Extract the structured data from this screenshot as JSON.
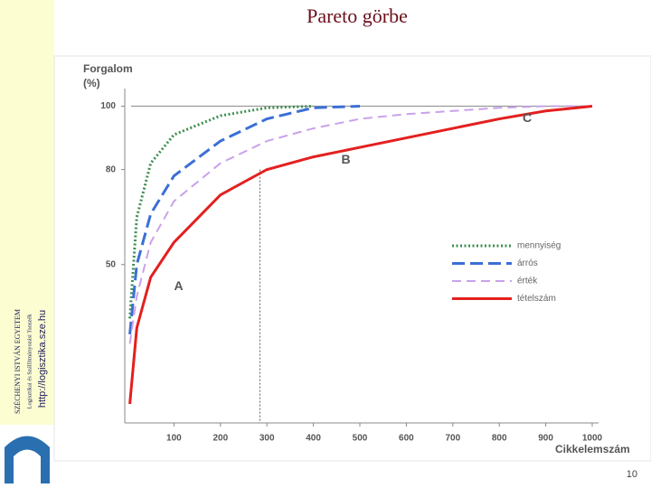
{
  "slide": {
    "title": "Pareto görbe",
    "sidebar": [
      "SZÉCHENYI ISTVÁN EGYETEM",
      "Logisztikai és Szállítmányozási Tanszék",
      "http://logisztika.sze.hu"
    ],
    "page_number": "10"
  },
  "chart_data": {
    "type": "line",
    "y_label": [
      "Forgalom",
      "(%)"
    ],
    "x_label": "Cikkelemszám",
    "x": [
      5,
      20,
      50,
      100,
      200,
      300,
      400,
      500,
      600,
      700,
      800,
      900,
      1000
    ],
    "series": [
      {
        "name": "mennyiség",
        "color": "#3d8f4f",
        "dash": "2 2.5",
        "values": [
          33,
          65,
          82,
          91,
          97,
          99.5,
          100,
          null,
          null,
          null,
          null,
          null,
          null
        ]
      },
      {
        "name": "árrós",
        "color": "#3b6fd6",
        "dash": "14 6",
        "values": [
          28,
          50,
          66,
          78,
          89,
          96,
          99.5,
          100,
          null,
          null,
          null,
          null,
          null
        ]
      },
      {
        "name": "érték",
        "color": "#c9a2ea",
        "dash": "10 6",
        "values": [
          25,
          40,
          57,
          70,
          82,
          89,
          93,
          96,
          97.5,
          98.5,
          99.5,
          100,
          100
        ]
      },
      {
        "name": "tételszám",
        "color": "#e3201f",
        "dash": "none",
        "values": [
          6,
          30,
          46,
          57,
          72,
          80,
          84,
          87,
          90,
          93,
          96,
          98.5,
          100
        ]
      }
    ],
    "annotations": [
      {
        "text": "A",
        "x": 110,
        "y": 43
      },
      {
        "text": "B",
        "x": 470,
        "y": 83
      },
      {
        "text": "C",
        "x": 860,
        "y": 96
      }
    ],
    "vline_x": 285,
    "xlim": [
      0,
      1000
    ],
    "ylim": [
      0,
      105
    ],
    "xticks": [
      100,
      200,
      300,
      400,
      500,
      600,
      700,
      800,
      900,
      1000
    ],
    "yticks": [
      50,
      80,
      100
    ]
  }
}
